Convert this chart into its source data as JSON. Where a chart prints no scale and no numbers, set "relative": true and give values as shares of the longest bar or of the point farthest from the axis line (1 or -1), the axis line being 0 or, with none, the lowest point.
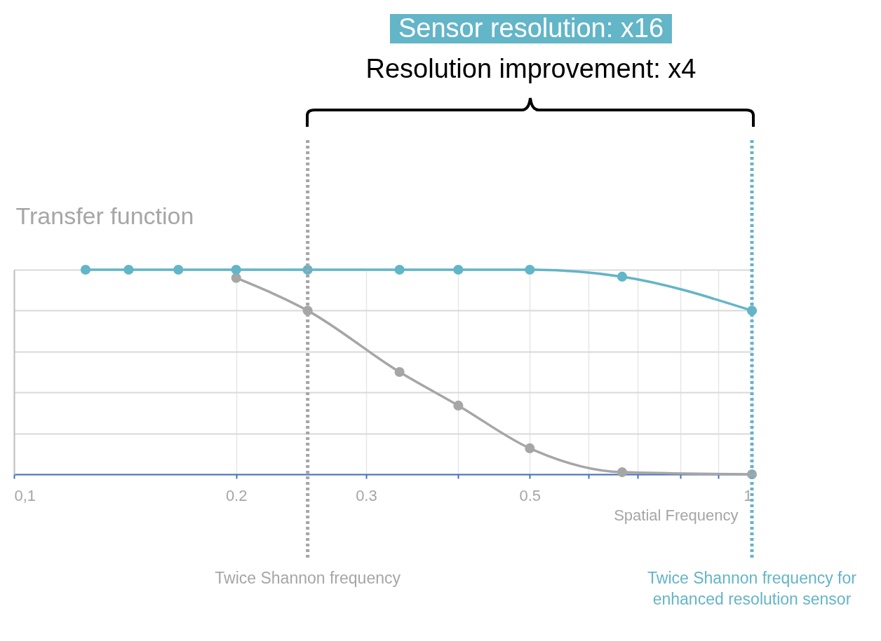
{
  "chart_data": {
    "type": "line",
    "relative": true,
    "ylabel": "Transfer function",
    "xlabel": "Spatial Frequency",
    "x": [
      0.125,
      0.143,
      0.167,
      0.2,
      0.25,
      0.333,
      0.4,
      0.5,
      0.667,
      1
    ],
    "series": [
      {
        "color": "#a6a6a6",
        "values": [
          null,
          null,
          null,
          0.96,
          0.8,
          0.5,
          0.336,
          0.127,
          0.01,
          0.0
        ]
      },
      {
        "color": "#63b5c8",
        "values": [
          1,
          1,
          1,
          1,
          1,
          1,
          1,
          1,
          0.966,
          0.8
        ]
      }
    ],
    "log": "x",
    "xlim": [
      0.1,
      1
    ],
    "xticks": [
      {
        "value": 0.1,
        "label": "0,1"
      },
      0.2,
      0.3,
      {
        "value": 0.4,
        "label": null
      },
      0.5,
      {
        "value": 0.6,
        "label": null
      },
      {
        "value": 0.7,
        "label": null
      },
      {
        "value": 0.8,
        "label": null
      },
      {
        "value": 0.9,
        "label": null
      },
      1
    ],
    "grid": true,
    "marker": "circle",
    "line_style": "solid",
    "ref_lines": [
      {
        "axis": "x",
        "value": 0.25,
        "label": "Twice Shannon frequency",
        "color": "#a6a6a6",
        "line_style": "dotted"
      },
      {
        "axis": "x",
        "value": 1,
        "label": "Twice Shannon frequency for enhanced resolution sensor",
        "color": "#63b5c8",
        "line_style": "dotted"
      }
    ],
    "annotations": [
      "Sensor resolution: x16",
      "Resolution improvement: x4"
    ]
  }
}
